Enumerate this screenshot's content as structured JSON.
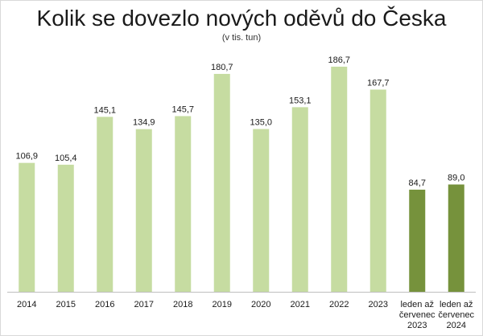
{
  "title": "Kolik se dovezlo nových oděvů do Česka",
  "subtitle": "(v tis. tun)",
  "colors": {
    "annual": "#c6dca1",
    "partial": "#76923c"
  },
  "chart_data": {
    "type": "bar",
    "title": "Kolik se dovezlo nových oděvů do Česka",
    "subtitle": "(v tis. tun)",
    "categories": [
      [
        "2014"
      ],
      [
        "2015"
      ],
      [
        "2016"
      ],
      [
        "2017"
      ],
      [
        "2018"
      ],
      [
        "2019"
      ],
      [
        "2020"
      ],
      [
        "2021"
      ],
      [
        "2022"
      ],
      [
        "2023"
      ],
      [
        "leden až",
        "červenec",
        "2023"
      ],
      [
        "leden až",
        "červenec",
        "2024"
      ]
    ],
    "values": [
      106.9,
      105.4,
      145.1,
      134.9,
      145.7,
      180.7,
      135.0,
      153.1,
      186.7,
      167.7,
      84.7,
      89.0
    ],
    "value_labels": [
      "106,9",
      "105,4",
      "145,1",
      "134,9",
      "145,7",
      "180,7",
      "135,0",
      "153,1",
      "186,7",
      "167,7",
      "84,7",
      "89,0"
    ],
    "bar_group": [
      "annual",
      "annual",
      "annual",
      "annual",
      "annual",
      "annual",
      "annual",
      "annual",
      "annual",
      "annual",
      "partial",
      "partial"
    ],
    "ylim": [
      0,
      200
    ],
    "grid": false,
    "legend": "none"
  }
}
